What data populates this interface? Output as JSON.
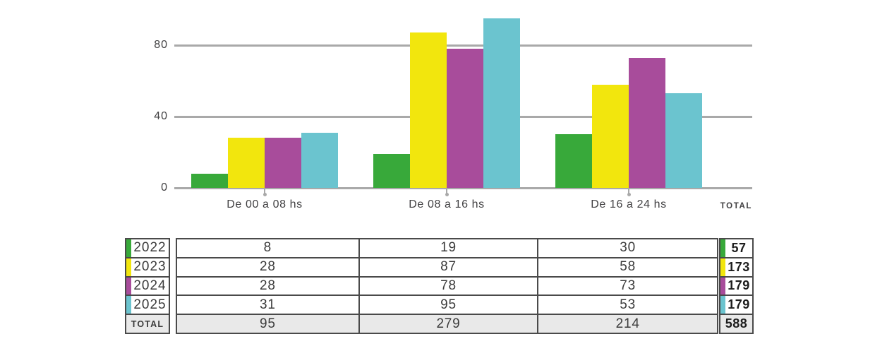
{
  "colors": {
    "green": "#38a93a",
    "yellow": "#f2e60d",
    "purple": "#a84c9b",
    "cyan": "#6bc4cf",
    "gridline": "#a9a9a9",
    "text": "#414042",
    "table_border": "#4a4a4a",
    "total_row_bg": "#e9e9e9"
  },
  "chart_data": {
    "type": "bar",
    "title": "",
    "xlabel": "",
    "ylabel": "",
    "grid": true,
    "legend_position": "table-below",
    "ylim": [
      0,
      100
    ],
    "yticks": [
      0,
      40,
      80
    ],
    "categories": [
      "De 00 a 08 hs",
      "De 08 a 16 hs",
      "De 16 a 24 hs"
    ],
    "series": [
      {
        "name": "2022",
        "color_key": "green",
        "values": [
          8,
          19,
          30
        ],
        "total": 57
      },
      {
        "name": "2023",
        "color_key": "yellow",
        "values": [
          28,
          87,
          58
        ],
        "total": 173
      },
      {
        "name": "2024",
        "color_key": "purple",
        "values": [
          28,
          78,
          73
        ],
        "total": 179
      },
      {
        "name": "2025",
        "color_key": "cyan",
        "values": [
          31,
          95,
          53
        ],
        "total": 179
      }
    ],
    "column_totals": [
      95,
      279,
      214
    ],
    "grand_total": 588
  },
  "chart": {
    "total_label": "TOTAL"
  },
  "table": {
    "total_row_label": "TOTAL"
  }
}
